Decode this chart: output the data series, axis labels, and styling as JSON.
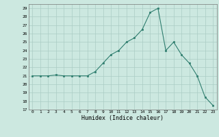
{
  "x": [
    0,
    1,
    2,
    3,
    4,
    5,
    6,
    7,
    8,
    9,
    10,
    11,
    12,
    13,
    14,
    15,
    16,
    17,
    18,
    19,
    20,
    21,
    22,
    23
  ],
  "y": [
    21,
    21,
    21,
    21.1,
    21,
    21,
    21,
    21,
    21.5,
    22.5,
    23.5,
    24,
    25,
    25.5,
    26.5,
    28.5,
    29,
    24,
    25,
    23.5,
    22.5,
    21,
    18.5,
    17.5
  ],
  "title": "",
  "xlabel": "Humidex (Indice chaleur)",
  "ylim": [
    17,
    29.5
  ],
  "xlim": [
    -0.5,
    23.5
  ],
  "line_color": "#2e7d6e",
  "marker_color": "#2e7d6e",
  "bg_color": "#cce8e0",
  "grid_color": "#aaccC4",
  "xlabel_color": "#000000"
}
